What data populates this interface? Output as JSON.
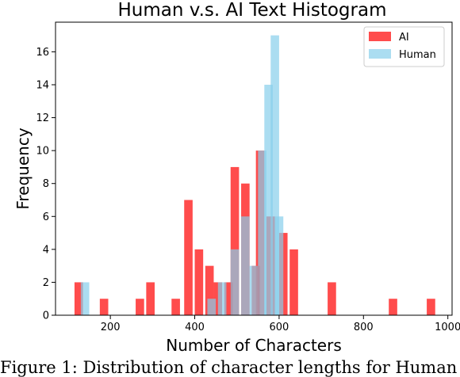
{
  "chart_data": {
    "type": "bar",
    "title": "Human v.s. AI Text Histogram",
    "xlabel": "Number of Characters",
    "ylabel": "Frequency",
    "xlim": [
      70,
      1010
    ],
    "ylim": [
      0,
      17.8
    ],
    "xticks": [
      200,
      400,
      600,
      800,
      1000
    ],
    "yticks": [
      0,
      2,
      4,
      6,
      8,
      10,
      12,
      14,
      16
    ],
    "bin_width": 20,
    "legend_position": "top-right",
    "series": [
      {
        "name": "AI",
        "color": "#ff0000",
        "opacity": 0.7,
        "points": [
          {
            "x": 125,
            "y": 2
          },
          {
            "x": 185,
            "y": 1
          },
          {
            "x": 270,
            "y": 1
          },
          {
            "x": 295,
            "y": 2
          },
          {
            "x": 355,
            "y": 1
          },
          {
            "x": 385,
            "y": 7
          },
          {
            "x": 410,
            "y": 4
          },
          {
            "x": 435,
            "y": 3
          },
          {
            "x": 455,
            "y": 2
          },
          {
            "x": 480,
            "y": 2
          },
          {
            "x": 495,
            "y": 9
          },
          {
            "x": 520,
            "y": 8
          },
          {
            "x": 545,
            "y": 3
          },
          {
            "x": 555,
            "y": 10
          },
          {
            "x": 580,
            "y": 6
          },
          {
            "x": 610,
            "y": 5
          },
          {
            "x": 635,
            "y": 4
          },
          {
            "x": 725,
            "y": 2
          },
          {
            "x": 870,
            "y": 1
          },
          {
            "x": 960,
            "y": 1
          }
        ]
      },
      {
        "name": "Human",
        "color": "#87ceeb",
        "opacity": 0.7,
        "points": [
          {
            "x": 140,
            "y": 2
          },
          {
            "x": 440,
            "y": 1
          },
          {
            "x": 465,
            "y": 2
          },
          {
            "x": 495,
            "y": 4
          },
          {
            "x": 520,
            "y": 6
          },
          {
            "x": 540,
            "y": 3
          },
          {
            "x": 560,
            "y": 10
          },
          {
            "x": 575,
            "y": 14
          },
          {
            "x": 590,
            "y": 17
          },
          {
            "x": 600,
            "y": 6
          }
        ]
      }
    ]
  },
  "caption": "Figure 1:  Distribution of character lengths for Human"
}
